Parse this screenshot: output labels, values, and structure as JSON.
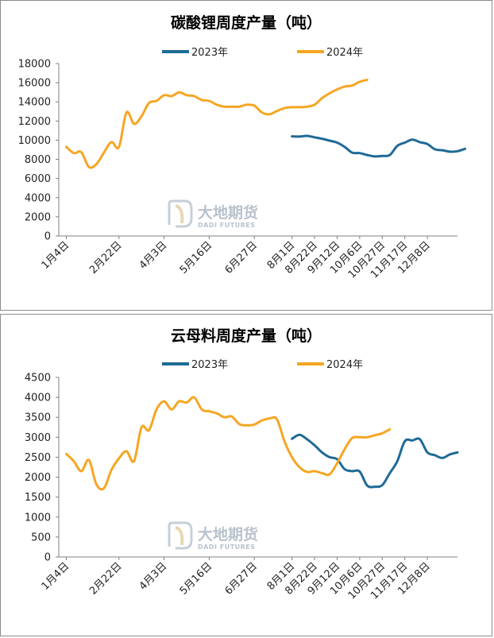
{
  "colors": {
    "s2023": "#1f6a96",
    "s2024": "#f5a623",
    "axis": "#808080"
  },
  "chart_data": [
    {
      "type": "line",
      "title": "碳酸锂周度产量（吨）",
      "ylim": [
        0,
        18000
      ],
      "yticks": [
        "0",
        "2000",
        "4000",
        "6000",
        "8000",
        "10000",
        "12000",
        "14000",
        "16000",
        "18000"
      ],
      "x_tick_labels": [
        "1月4日",
        "2月22日",
        "4月3日",
        "5月16日",
        "6月27日",
        "8月1日",
        "8月22日",
        "9月12日",
        "10月6日",
        "10月27日",
        "11月17日",
        "12月8日"
      ],
      "x_tick_weeks": [
        0,
        7,
        13,
        19,
        25,
        30,
        33,
        36,
        39,
        42,
        45,
        48
      ],
      "x_range": [
        -1,
        52
      ],
      "legend": "top",
      "watermark": {
        "cn": "大地期货",
        "en": "DADI FUTURES"
      },
      "series": [
        {
          "name": "2023年",
          "color_key": "s2023",
          "start_week": 30,
          "values": [
            10400,
            10380,
            10450,
            10300,
            10150,
            9950,
            9750,
            9300,
            8700,
            8650,
            8450,
            8300,
            8350,
            8450,
            9400,
            9750,
            10050,
            9800,
            9600,
            9050,
            8950,
            8800,
            8850,
            9100
          ]
        },
        {
          "name": "2024年",
          "color_key": "s2024",
          "start_week": 0,
          "values": [
            9300,
            8650,
            8750,
            7200,
            7500,
            8700,
            9800,
            9300,
            12900,
            11700,
            12500,
            13900,
            14100,
            14700,
            14600,
            15000,
            14700,
            14600,
            14200,
            14100,
            13700,
            13500,
            13500,
            13500,
            13700,
            13600,
            12900,
            12700,
            13050,
            13350,
            13450,
            13450,
            13500,
            13700,
            14400,
            14900,
            15300,
            15600,
            15700,
            16100,
            16300
          ]
        }
      ]
    },
    {
      "type": "line",
      "title": "云母料周度产量（吨）",
      "ylim": [
        0,
        4500
      ],
      "yticks": [
        "0",
        "500",
        "1000",
        "1500",
        "2000",
        "2500",
        "3000",
        "3500",
        "4000",
        "4500"
      ],
      "x_tick_labels": [
        "1月4日",
        "2月22日",
        "4月3日",
        "5月16日",
        "6月27日",
        "8月1日",
        "8月22日",
        "9月12日",
        "10月6日",
        "10月27日",
        "11月17日",
        "12月8日"
      ],
      "x_tick_weeks": [
        0,
        7,
        13,
        19,
        25,
        30,
        33,
        36,
        39,
        42,
        45,
        48
      ],
      "x_range": [
        -1,
        52
      ],
      "legend": "top",
      "watermark": {
        "cn": "大地期货",
        "en": "DADI FUTURES"
      },
      "series": [
        {
          "name": "2023年",
          "color_key": "s2023",
          "start_week": 30,
          "values": [
            2960,
            3060,
            2950,
            2800,
            2620,
            2500,
            2450,
            2200,
            2150,
            2140,
            1790,
            1760,
            1800,
            2100,
            2400,
            2900,
            2920,
            2950,
            2620,
            2550,
            2480,
            2570,
            2620
          ]
        },
        {
          "name": "2024年",
          "color_key": "s2024",
          "start_week": 0,
          "values": [
            2580,
            2400,
            2150,
            2430,
            1820,
            1720,
            2180,
            2470,
            2650,
            2400,
            3250,
            3180,
            3700,
            3900,
            3700,
            3900,
            3870,
            4000,
            3700,
            3650,
            3600,
            3500,
            3520,
            3330,
            3300,
            3320,
            3420,
            3470,
            3450,
            2900,
            2500,
            2250,
            2130,
            2150,
            2100,
            2070,
            2350,
            2700,
            2980,
            3000,
            3000,
            3050,
            3100,
            3200
          ]
        }
      ]
    }
  ]
}
